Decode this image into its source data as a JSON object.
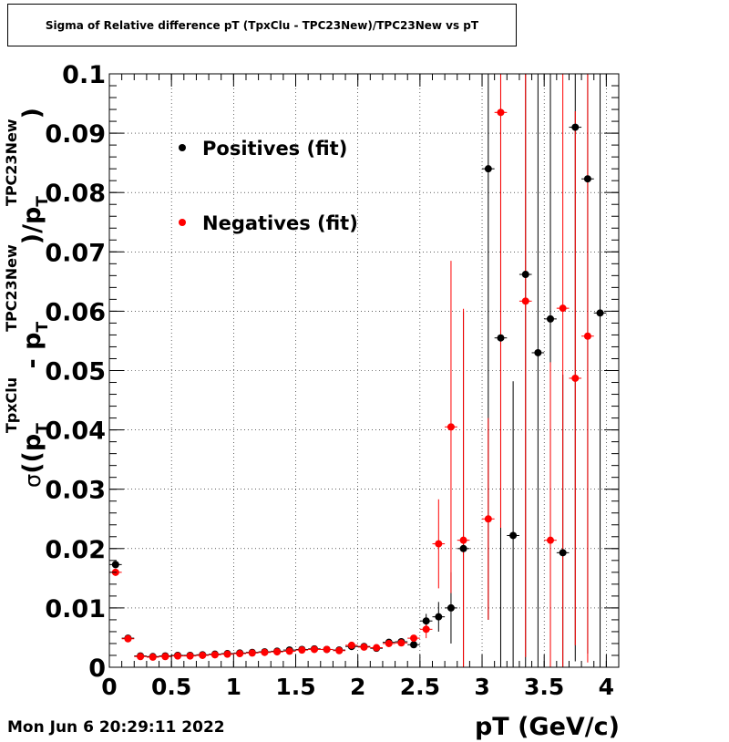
{
  "chart_data": {
    "type": "scatter",
    "title": "Sigma of Relative difference pT (TpxClu - TPC23New)/TPC23New vs pT",
    "xlabel": "pT (GeV/c)",
    "ylabel_parts": {
      "sigma": "σ",
      "open": "((p",
      "sub1": "T",
      "sup1": "TpxClu",
      "minus": " - p",
      "sub2": "T",
      "sup2": "TPC23New",
      "close1": ")/p",
      "sub3": "T",
      "sup3": "TPC23New",
      "close2": ")"
    },
    "xlim": [
      0,
      4.1
    ],
    "ylim": [
      0,
      0.1
    ],
    "x_ticks": [
      "0",
      "0.5",
      "1",
      "1.5",
      "2",
      "2.5",
      "3",
      "3.5",
      "4"
    ],
    "x_tick_values": [
      0,
      0.5,
      1,
      1.5,
      2,
      2.5,
      3,
      3.5,
      4
    ],
    "y_ticks": [
      "0",
      "0.01",
      "0.02",
      "0.03",
      "0.04",
      "0.05",
      "0.06",
      "0.07",
      "0.08",
      "0.09",
      "0.1"
    ],
    "y_tick_values": [
      0,
      0.01,
      0.02,
      0.03,
      0.04,
      0.05,
      0.06,
      0.07,
      0.08,
      0.09,
      0.1
    ],
    "grid": true,
    "legend_placement": "top-left",
    "series": [
      {
        "name": "Positives (fit)",
        "color": "#000000",
        "points": [
          {
            "x": 0.05,
            "y": 0.0173,
            "err": 0.0006
          },
          {
            "x": 0.15,
            "y": 0.0049,
            "err": 0.0002
          },
          {
            "x": 0.25,
            "y": 0.0019,
            "err": 0.0001
          },
          {
            "x": 0.35,
            "y": 0.0018,
            "err": 0.0001
          },
          {
            "x": 0.45,
            "y": 0.0019,
            "err": 0.0001
          },
          {
            "x": 0.55,
            "y": 0.002,
            "err": 0.0001
          },
          {
            "x": 0.65,
            "y": 0.002,
            "err": 0.0001
          },
          {
            "x": 0.75,
            "y": 0.0021,
            "err": 0.0001
          },
          {
            "x": 0.85,
            "y": 0.0022,
            "err": 0.0001
          },
          {
            "x": 0.95,
            "y": 0.0023,
            "err": 0.0001
          },
          {
            "x": 1.05,
            "y": 0.0024,
            "err": 0.0001
          },
          {
            "x": 1.15,
            "y": 0.0025,
            "err": 0.0001
          },
          {
            "x": 1.25,
            "y": 0.0026,
            "err": 0.0001
          },
          {
            "x": 1.35,
            "y": 0.0027,
            "err": 0.0001
          },
          {
            "x": 1.45,
            "y": 0.0029,
            "err": 0.0001
          },
          {
            "x": 1.55,
            "y": 0.003,
            "err": 0.0001
          },
          {
            "x": 1.65,
            "y": 0.0031,
            "err": 0.0001
          },
          {
            "x": 1.75,
            "y": 0.003,
            "err": 0.0001
          },
          {
            "x": 1.85,
            "y": 0.0029,
            "err": 0.0001
          },
          {
            "x": 1.95,
            "y": 0.0035,
            "err": 0.0002
          },
          {
            "x": 2.05,
            "y": 0.0035,
            "err": 0.0002
          },
          {
            "x": 2.15,
            "y": 0.0032,
            "err": 0.0002
          },
          {
            "x": 2.25,
            "y": 0.0042,
            "err": 0.0003
          },
          {
            "x": 2.35,
            "y": 0.0043,
            "err": 0.0003
          },
          {
            "x": 2.45,
            "y": 0.0038,
            "err": 0.0004
          },
          {
            "x": 2.55,
            "y": 0.0078,
            "err": 0.0012
          },
          {
            "x": 2.65,
            "y": 0.0085,
            "err": 0.0025
          },
          {
            "x": 2.75,
            "y": 0.01,
            "err": 0.006
          },
          {
            "x": 2.85,
            "y": 0.02,
            "err": 0.04
          },
          {
            "x": 3.05,
            "y": 0.084,
            "err": 0.076
          },
          {
            "x": 3.15,
            "y": 0.0555,
            "err": 0.06
          },
          {
            "x": 3.25,
            "y": 0.0222,
            "err": 0.026
          },
          {
            "x": 3.35,
            "y": 0.0662,
            "err": 0.07
          },
          {
            "x": 3.45,
            "y": 0.053,
            "err": 0.06
          },
          {
            "x": 3.55,
            "y": 0.0587,
            "err": 0.065
          },
          {
            "x": 3.65,
            "y": 0.0193,
            "err": 0.03
          },
          {
            "x": 3.75,
            "y": 0.091,
            "err": 0.09
          },
          {
            "x": 3.85,
            "y": 0.0823,
            "err": 0.08
          },
          {
            "x": 3.95,
            "y": 0.0597,
            "err": 0.06
          }
        ]
      },
      {
        "name": "Negatives (fit)",
        "color": "#ff0000",
        "points": [
          {
            "x": 0.05,
            "y": 0.016,
            "err": 0.0006
          },
          {
            "x": 0.15,
            "y": 0.0048,
            "err": 0.0002
          },
          {
            "x": 0.25,
            "y": 0.0018,
            "err": 0.0001
          },
          {
            "x": 0.35,
            "y": 0.0017,
            "err": 0.0001
          },
          {
            "x": 0.45,
            "y": 0.0018,
            "err": 0.0001
          },
          {
            "x": 0.55,
            "y": 0.0019,
            "err": 0.0001
          },
          {
            "x": 0.65,
            "y": 0.0019,
            "err": 0.0001
          },
          {
            "x": 0.75,
            "y": 0.002,
            "err": 0.0001
          },
          {
            "x": 0.85,
            "y": 0.0021,
            "err": 0.0001
          },
          {
            "x": 0.95,
            "y": 0.0022,
            "err": 0.0001
          },
          {
            "x": 1.05,
            "y": 0.0023,
            "err": 0.0001
          },
          {
            "x": 1.15,
            "y": 0.0024,
            "err": 0.0001
          },
          {
            "x": 1.25,
            "y": 0.0025,
            "err": 0.0001
          },
          {
            "x": 1.35,
            "y": 0.0026,
            "err": 0.0001
          },
          {
            "x": 1.45,
            "y": 0.0027,
            "err": 0.0001
          },
          {
            "x": 1.55,
            "y": 0.0029,
            "err": 0.0001
          },
          {
            "x": 1.65,
            "y": 0.003,
            "err": 0.0001
          },
          {
            "x": 1.75,
            "y": 0.003,
            "err": 0.0001
          },
          {
            "x": 1.85,
            "y": 0.0028,
            "err": 0.0001
          },
          {
            "x": 1.95,
            "y": 0.0037,
            "err": 0.0002
          },
          {
            "x": 2.05,
            "y": 0.0034,
            "err": 0.0002
          },
          {
            "x": 2.15,
            "y": 0.0033,
            "err": 0.0002
          },
          {
            "x": 2.25,
            "y": 0.004,
            "err": 0.0003
          },
          {
            "x": 2.35,
            "y": 0.0041,
            "err": 0.0003
          },
          {
            "x": 2.45,
            "y": 0.0049,
            "err": 0.0005
          },
          {
            "x": 2.55,
            "y": 0.0064,
            "err": 0.0015
          },
          {
            "x": 2.65,
            "y": 0.0208,
            "err": 0.0075
          },
          {
            "x": 2.75,
            "y": 0.0405,
            "err": 0.028
          },
          {
            "x": 2.85,
            "y": 0.0214,
            "err": 0.039
          },
          {
            "x": 3.05,
            "y": 0.025,
            "err": 0.017
          },
          {
            "x": 3.15,
            "y": 0.0935,
            "err": 0.07
          },
          {
            "x": 3.35,
            "y": 0.0617,
            "err": 0.06
          },
          {
            "x": 3.55,
            "y": 0.0214,
            "err": 0.03
          },
          {
            "x": 3.65,
            "y": 0.0605,
            "err": 0.062
          },
          {
            "x": 3.75,
            "y": 0.0487,
            "err": 0.045
          },
          {
            "x": 3.85,
            "y": 0.0558,
            "err": 0.055
          }
        ]
      }
    ]
  },
  "footer": {
    "timestamp": "Mon Jun  6 20:29:11 2022"
  }
}
